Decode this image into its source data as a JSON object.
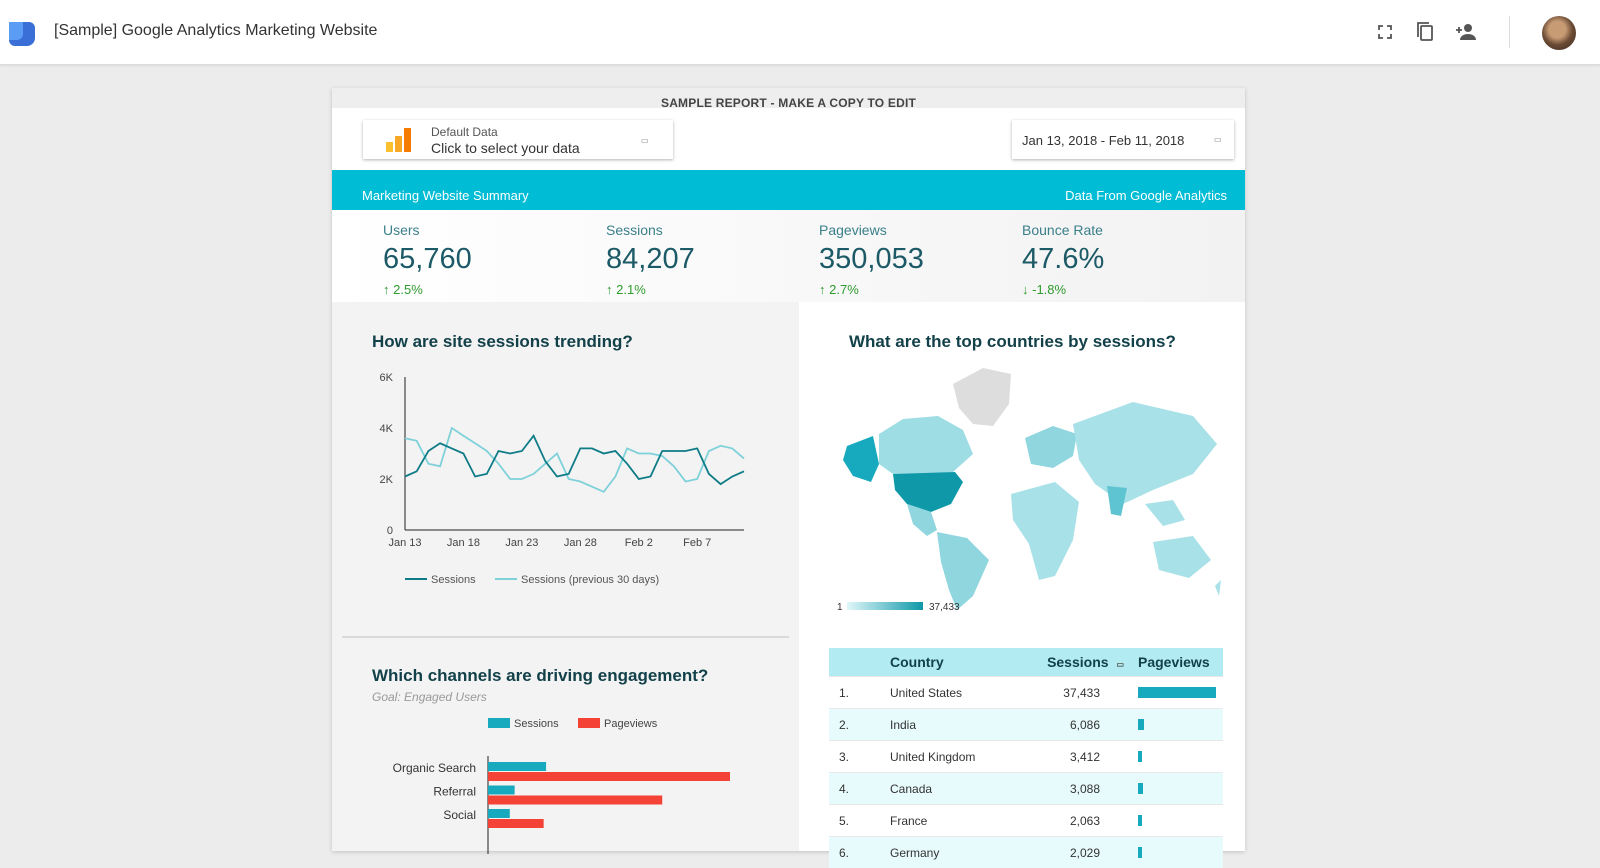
{
  "app": {
    "title": "[Sample] Google Analytics Marketing Website",
    "toolbar_icons": [
      "fullscreen-icon",
      "copy-icon",
      "share-person-icon"
    ],
    "avatar": "user-avatar"
  },
  "report": {
    "banner": "SAMPLE REPORT - MAKE A COPY TO EDIT",
    "data_control": {
      "label": "Default Data",
      "value": "Click to select your data"
    },
    "date_control": {
      "value": "Jan 13, 2018 - Feb 11, 2018"
    },
    "header": {
      "left": "Marketing Website Summary",
      "right": "Data From Google Analytics"
    },
    "kpis": [
      {
        "label": "Users",
        "value": "65,760",
        "delta": "2.5%",
        "direction": "up"
      },
      {
        "label": "Sessions",
        "value": "84,207",
        "delta": "2.1%",
        "direction": "up"
      },
      {
        "label": "Pageviews",
        "value": "350,053",
        "delta": "2.7%",
        "direction": "up"
      },
      {
        "label": "Bounce Rate",
        "value": "47.6%",
        "delta": "-1.8%",
        "direction": "down"
      }
    ],
    "trend": {
      "title": "How are site sessions trending?"
    },
    "channels": {
      "title": "Which channels are driving engagement?",
      "subtitle": "Goal: Engaged Users"
    },
    "map": {
      "title": "What are the top countries by sessions?",
      "legend_min": "1",
      "legend_max": "37,433"
    },
    "table": {
      "columns": [
        "Country",
        "Sessions",
        "Pageviews"
      ],
      "rows": [
        {
          "rank": "1.",
          "country": "United States",
          "sessions": "37,433",
          "pageviews_fraction": 1.0
        },
        {
          "rank": "2.",
          "country": "India",
          "sessions": "6,086",
          "pageviews_fraction": 0.08
        },
        {
          "rank": "3.",
          "country": "United Kingdom",
          "sessions": "3,412",
          "pageviews_fraction": 0.04
        },
        {
          "rank": "4.",
          "country": "Canada",
          "sessions": "3,088",
          "pageviews_fraction": 0.07
        },
        {
          "rank": "5.",
          "country": "France",
          "sessions": "2,063",
          "pageviews_fraction": 0.03
        },
        {
          "rank": "6.",
          "country": "Germany",
          "sessions": "2,029",
          "pageviews_fraction": 0.03
        }
      ]
    }
  },
  "colors": {
    "accent": "#00bcd4",
    "sessions": "#0e7c86",
    "previous": "#7fd1d9",
    "pageviews": "#f44336",
    "bar_sessions": "#17a9bd"
  },
  "chart_data": [
    {
      "type": "line",
      "x": [
        "Jan 13",
        "Jan 14",
        "Jan 15",
        "Jan 16",
        "Jan 17",
        "Jan 18",
        "Jan 19",
        "Jan 20",
        "Jan 21",
        "Jan 22",
        "Jan 23",
        "Jan 24",
        "Jan 25",
        "Jan 26",
        "Jan 27",
        "Jan 28",
        "Jan 29",
        "Jan 30",
        "Jan 31",
        "Feb 1",
        "Feb 2",
        "Feb 3",
        "Feb 4",
        "Feb 5",
        "Feb 6",
        "Feb 7",
        "Feb 8",
        "Feb 9",
        "Feb 10",
        "Feb 11"
      ],
      "xticks": [
        "Jan 13",
        "Jan 18",
        "Jan 23",
        "Jan 28",
        "Feb 2",
        "Feb 7"
      ],
      "yticks": [
        "0",
        "2K",
        "4K",
        "6K"
      ],
      "ylim": [
        0,
        6000
      ],
      "grid": false,
      "legend": "bottom",
      "series": [
        {
          "name": "Sessions",
          "values": [
            2100,
            2300,
            3100,
            3400,
            3200,
            3000,
            2100,
            2200,
            3100,
            3000,
            3100,
            3700,
            2700,
            2100,
            2200,
            3200,
            3200,
            3000,
            3100,
            2600,
            2000,
            2100,
            3100,
            3100,
            3100,
            3200,
            2200,
            1800,
            2100,
            2300
          ]
        },
        {
          "name": "Sessions (previous 30 days)",
          "values": [
            3600,
            3500,
            2600,
            2500,
            4000,
            3700,
            3400,
            3100,
            2600,
            2000,
            2000,
            2200,
            2600,
            3000,
            2000,
            1900,
            1700,
            1500,
            2100,
            3200,
            3000,
            3000,
            2900,
            2500,
            1900,
            2000,
            3100,
            3300,
            3200,
            2800
          ]
        }
      ]
    },
    {
      "type": "bar",
      "orientation": "horizontal",
      "categories": [
        "Organic Search",
        "Referral",
        "Social"
      ],
      "legend": "top",
      "series": [
        {
          "name": "Sessions",
          "values": [
            24,
            11,
            9
          ]
        },
        {
          "name": "Pageviews",
          "values": [
            100,
            72,
            23
          ]
        }
      ]
    }
  ]
}
